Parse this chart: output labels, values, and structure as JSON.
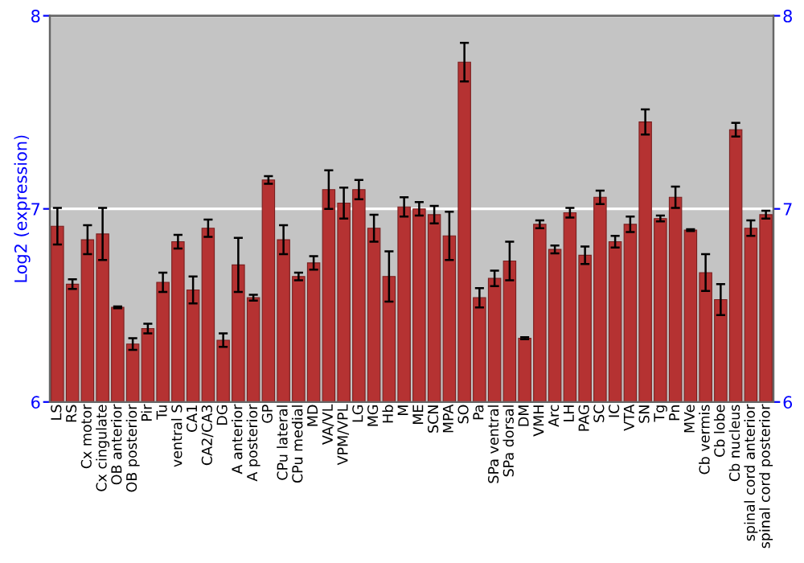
{
  "chart_data": {
    "type": "bar",
    "ylabel": "Log2 (expression)",
    "categories": [
      "LS",
      "RS",
      "Cx motor",
      "Cx cingulate",
      "OB anterior",
      "OB posterior",
      "Pir",
      "Tu",
      "ventral S",
      "CA1",
      "CA2/CA3",
      "DG",
      "A anterior",
      "A posterior",
      "GP",
      "CPu lateral",
      "CPu medial",
      "MD",
      "VA/VL",
      "VPM/VPL",
      "LG",
      "MG",
      "Hb",
      "M",
      "ME",
      "SCN",
      "MPA",
      "SO",
      "Pa",
      "SPa ventral",
      "SPa dorsal",
      "DM",
      "VMH",
      "Arc",
      "LH",
      "PAG",
      "SC",
      "IC",
      "VTA",
      "SN",
      "Tg",
      "Pn",
      "MVe",
      "Cb vermis",
      "Cb lobe",
      "Cb nucleus",
      "spinal cord anterior",
      "spinal cord posterior"
    ],
    "series": [
      {
        "color": "#b53232",
        "values": [
          6.91,
          6.61,
          6.84,
          6.87,
          6.49,
          6.3,
          6.38,
          6.62,
          6.83,
          6.58,
          6.9,
          6.32,
          6.71,
          6.54,
          7.15,
          6.84,
          6.65,
          6.72,
          7.1,
          7.03,
          7.1,
          6.9,
          6.65,
          7.01,
          7.0,
          6.97,
          6.86,
          7.76,
          6.54,
          6.64,
          6.73,
          6.33,
          6.92,
          6.79,
          6.98,
          6.76,
          7.06,
          6.83,
          6.92,
          7.45,
          6.95,
          7.06,
          6.89,
          6.67,
          6.53,
          7.41,
          6.9,
          6.97
        ],
        "errors": [
          0.095,
          0.025,
          0.075,
          0.135,
          0.005,
          0.03,
          0.025,
          0.05,
          0.035,
          0.07,
          0.045,
          0.035,
          0.14,
          0.015,
          0.02,
          0.075,
          0.02,
          0.035,
          0.1,
          0.08,
          0.05,
          0.07,
          0.13,
          0.05,
          0.035,
          0.045,
          0.125,
          0.1,
          0.05,
          0.04,
          0.1,
          0.005,
          0.02,
          0.02,
          0.025,
          0.045,
          0.035,
          0.03,
          0.04,
          0.065,
          0.015,
          0.055,
          0.005,
          0.095,
          0.08,
          0.035,
          0.04,
          0.02
        ]
      }
    ],
    "ylim": [
      6,
      8
    ],
    "yticks": [
      6,
      7,
      8
    ],
    "y2lim": [
      6,
      8
    ],
    "y2ticks": [
      6,
      7,
      8
    ],
    "grid": "y"
  }
}
